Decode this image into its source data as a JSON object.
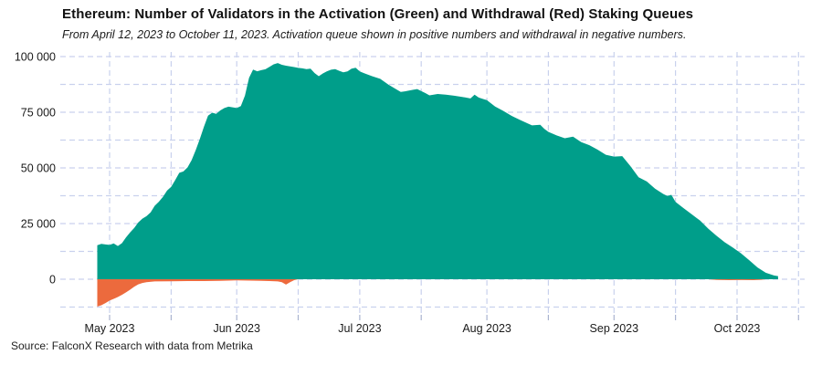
{
  "header": {
    "title": "Ethereum: Number of Validators in the Activation (Green) and Withdrawal (Red) Staking Queues",
    "subtitle": "From April 12, 2023 to October 11, 2023. Activation queue shown in positive numbers and withdrawal in negative numbers."
  },
  "footer": {
    "source_note": "Source: FalconX Research with data from Metrika"
  },
  "colors": {
    "activation_green": "#009E8A",
    "withdrawal_orange": "#EC6A3D",
    "gridline": "#C9D1ED",
    "tick_mark": "#A9B3CF",
    "text": "#1A1A1A"
  },
  "chart_data": {
    "type": "area",
    "title": "Ethereum: Number of Validators in the Activation (Green) and Withdrawal (Red) Staking Queues",
    "subtitle": "From April 12, 2023 to October 11, 2023. Activation queue shown in positive numbers and withdrawal in negative numbers.",
    "grid": "dashed",
    "legend_position": "none",
    "x_axis": {
      "ticks": [
        {
          "date": "2023-05-01",
          "label": "May 2023"
        },
        {
          "date": "2023-05-16"
        },
        {
          "date": "2023-06-01",
          "label": "Jun 2023"
        },
        {
          "date": "2023-06-16"
        },
        {
          "date": "2023-07-01",
          "label": "Jul 2023"
        },
        {
          "date": "2023-07-16"
        },
        {
          "date": "2023-08-01",
          "label": "Aug 2023"
        },
        {
          "date": "2023-08-16"
        },
        {
          "date": "2023-09-01",
          "label": "Sep 2023"
        },
        {
          "date": "2023-09-16"
        },
        {
          "date": "2023-10-01",
          "label": "Oct 2023"
        },
        {
          "date": "2023-10-16"
        }
      ]
    },
    "y_axis": {
      "ticks": [
        {
          "value": 0,
          "label": "0"
        },
        {
          "value": 25000,
          "label": "25 000"
        },
        {
          "value": 50000,
          "label": "50 000"
        },
        {
          "value": 75000,
          "label": "75 000"
        },
        {
          "value": 100000,
          "label": "100 000"
        }
      ],
      "gridline_values": [
        -12500,
        0,
        12500,
        25000,
        37500,
        50000,
        62500,
        75000,
        87500,
        100000
      ],
      "range": [
        -16000,
        102000
      ]
    },
    "series": [
      {
        "name": "Activation queue",
        "color": "#009E8A",
        "points": [
          [
            "2023-04-28",
            15300
          ],
          [
            "2023-04-29",
            15900
          ],
          [
            "2023-04-30",
            15600
          ],
          [
            "2023-05-01",
            15400
          ],
          [
            "2023-05-02",
            16100
          ],
          [
            "2023-05-03",
            14900
          ],
          [
            "2023-05-04",
            16200
          ],
          [
            "2023-05-05",
            18800
          ],
          [
            "2023-05-06",
            21000
          ],
          [
            "2023-05-07",
            23000
          ],
          [
            "2023-05-08",
            25500
          ],
          [
            "2023-05-09",
            27200
          ],
          [
            "2023-05-10",
            28300
          ],
          [
            "2023-05-11",
            30000
          ],
          [
            "2023-05-12",
            33000
          ],
          [
            "2023-05-13",
            34800
          ],
          [
            "2023-05-14",
            37000
          ],
          [
            "2023-05-15",
            39800
          ],
          [
            "2023-05-16",
            41500
          ],
          [
            "2023-05-17",
            44500
          ],
          [
            "2023-05-18",
            47800
          ],
          [
            "2023-05-19",
            48400
          ],
          [
            "2023-05-20",
            50200
          ],
          [
            "2023-05-21",
            53500
          ],
          [
            "2023-05-22",
            58000
          ],
          [
            "2023-05-23",
            63000
          ],
          [
            "2023-05-24",
            68500
          ],
          [
            "2023-05-25",
            73500
          ],
          [
            "2023-05-26",
            74800
          ],
          [
            "2023-05-27",
            74300
          ],
          [
            "2023-05-28",
            75800
          ],
          [
            "2023-05-29",
            76900
          ],
          [
            "2023-05-30",
            77500
          ],
          [
            "2023-05-31",
            77200
          ],
          [
            "2023-06-01",
            76900
          ],
          [
            "2023-06-02",
            77800
          ],
          [
            "2023-06-03",
            82500
          ],
          [
            "2023-06-04",
            90500
          ],
          [
            "2023-06-05",
            94200
          ],
          [
            "2023-06-06",
            93400
          ],
          [
            "2023-06-07",
            93900
          ],
          [
            "2023-06-08",
            94300
          ],
          [
            "2023-06-09",
            95400
          ],
          [
            "2023-06-10",
            96500
          ],
          [
            "2023-06-11",
            97100
          ],
          [
            "2023-06-12",
            96300
          ],
          [
            "2023-06-13",
            95900
          ],
          [
            "2023-06-14",
            95600
          ],
          [
            "2023-06-15",
            95300
          ],
          [
            "2023-06-16",
            94900
          ],
          [
            "2023-06-17",
            94700
          ],
          [
            "2023-06-18",
            94400
          ],
          [
            "2023-06-19",
            94600
          ],
          [
            "2023-06-20",
            92600
          ],
          [
            "2023-06-21",
            91200
          ],
          [
            "2023-06-22",
            92400
          ],
          [
            "2023-06-23",
            93400
          ],
          [
            "2023-06-24",
            94100
          ],
          [
            "2023-06-25",
            94400
          ],
          [
            "2023-06-26",
            93600
          ],
          [
            "2023-06-27",
            92900
          ],
          [
            "2023-06-28",
            93300
          ],
          [
            "2023-06-29",
            94600
          ],
          [
            "2023-06-30",
            95000
          ],
          [
            "2023-07-01",
            93300
          ],
          [
            "2023-07-02",
            92600
          ],
          [
            "2023-07-04",
            91200
          ],
          [
            "2023-07-06",
            90000
          ],
          [
            "2023-07-08",
            87400
          ],
          [
            "2023-07-10",
            85200
          ],
          [
            "2023-07-11",
            84100
          ],
          [
            "2023-07-12",
            84400
          ],
          [
            "2023-07-14",
            85100
          ],
          [
            "2023-07-15",
            85400
          ],
          [
            "2023-07-17",
            83600
          ],
          [
            "2023-07-18",
            82600
          ],
          [
            "2023-07-20",
            83200
          ],
          [
            "2023-07-22",
            82900
          ],
          [
            "2023-07-24",
            82400
          ],
          [
            "2023-07-26",
            81900
          ],
          [
            "2023-07-28",
            81200
          ],
          [
            "2023-07-29",
            82900
          ],
          [
            "2023-07-30",
            81600
          ],
          [
            "2023-07-31",
            81000
          ],
          [
            "2023-08-01",
            80400
          ],
          [
            "2023-08-02",
            79000
          ],
          [
            "2023-08-03",
            77600
          ],
          [
            "2023-08-05",
            75600
          ],
          [
            "2023-08-07",
            73400
          ],
          [
            "2023-08-09",
            71600
          ],
          [
            "2023-08-11",
            69900
          ],
          [
            "2023-08-12",
            69100
          ],
          [
            "2023-08-14",
            69400
          ],
          [
            "2023-08-15",
            67600
          ],
          [
            "2023-08-16",
            66200
          ],
          [
            "2023-08-18",
            64600
          ],
          [
            "2023-08-20",
            63300
          ],
          [
            "2023-08-22",
            64000
          ],
          [
            "2023-08-24",
            61600
          ],
          [
            "2023-08-26",
            60200
          ],
          [
            "2023-08-28",
            58200
          ],
          [
            "2023-08-30",
            55900
          ],
          [
            "2023-09-01",
            55100
          ],
          [
            "2023-09-03",
            55300
          ],
          [
            "2023-09-05",
            50800
          ],
          [
            "2023-09-07",
            45800
          ],
          [
            "2023-09-09",
            43900
          ],
          [
            "2023-09-11",
            40700
          ],
          [
            "2023-09-13",
            38300
          ],
          [
            "2023-09-14",
            37400
          ],
          [
            "2023-09-15",
            37900
          ],
          [
            "2023-09-16",
            34700
          ],
          [
            "2023-09-18",
            31900
          ],
          [
            "2023-09-20",
            29100
          ],
          [
            "2023-09-22",
            26300
          ],
          [
            "2023-09-24",
            22700
          ],
          [
            "2023-09-26",
            19500
          ],
          [
            "2023-09-28",
            16600
          ],
          [
            "2023-09-30",
            14200
          ],
          [
            "2023-10-02",
            11600
          ],
          [
            "2023-10-04",
            8500
          ],
          [
            "2023-10-06",
            5300
          ],
          [
            "2023-10-08",
            2900
          ],
          [
            "2023-10-10",
            1700
          ],
          [
            "2023-10-11",
            1400
          ]
        ]
      },
      {
        "name": "Withdrawal queue",
        "color": "#EC6A3D",
        "points": [
          [
            "2023-04-28",
            -12300
          ],
          [
            "2023-04-29",
            -11700
          ],
          [
            "2023-04-30",
            -10700
          ],
          [
            "2023-05-01",
            -9600
          ],
          [
            "2023-05-02",
            -8800
          ],
          [
            "2023-05-03",
            -8000
          ],
          [
            "2023-05-04",
            -7000
          ],
          [
            "2023-05-05",
            -5900
          ],
          [
            "2023-05-06",
            -4700
          ],
          [
            "2023-05-07",
            -3400
          ],
          [
            "2023-05-08",
            -2300
          ],
          [
            "2023-05-09",
            -1700
          ],
          [
            "2023-05-10",
            -1300
          ],
          [
            "2023-05-12",
            -1000
          ],
          [
            "2023-05-16",
            -900
          ],
          [
            "2023-05-20",
            -800
          ],
          [
            "2023-05-24",
            -800
          ],
          [
            "2023-05-28",
            -700
          ],
          [
            "2023-06-01",
            -500
          ],
          [
            "2023-06-04",
            -600
          ],
          [
            "2023-06-07",
            -700
          ],
          [
            "2023-06-09",
            -800
          ],
          [
            "2023-06-11",
            -1000
          ],
          [
            "2023-06-12",
            -1300
          ],
          [
            "2023-06-13",
            -2400
          ],
          [
            "2023-06-14",
            -1300
          ],
          [
            "2023-06-15",
            -400
          ],
          [
            "2023-06-16",
            0
          ],
          [
            "2023-09-24",
            0
          ],
          [
            "2023-09-26",
            -300
          ],
          [
            "2023-09-29",
            -400
          ],
          [
            "2023-10-02",
            -350
          ],
          [
            "2023-10-05",
            -400
          ],
          [
            "2023-10-07",
            -250
          ],
          [
            "2023-10-08",
            0
          ],
          [
            "2023-10-11",
            0
          ]
        ]
      }
    ]
  }
}
